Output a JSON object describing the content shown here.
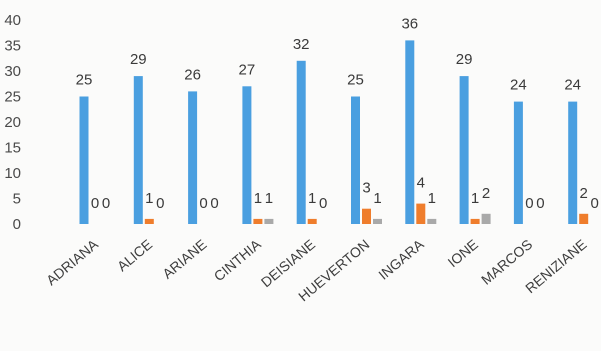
{
  "chart_data": {
    "type": "bar",
    "title": "",
    "xlabel": "",
    "ylabel": "",
    "ylim": [
      0,
      40
    ],
    "y_ticks": [
      0,
      5,
      10,
      15,
      20,
      25,
      30,
      35,
      40
    ],
    "grid": false,
    "legend": "none",
    "categories": [
      "ADRIANA",
      "ALICE",
      "ARIANE",
      "CINTHIA",
      "DEISIANE",
      "HUEVERTON",
      "INGARA",
      "IONE",
      "MARCOS",
      "RENIZIANE"
    ],
    "series": [
      {
        "color": "#4a9fe0",
        "values": [
          25,
          29,
          26,
          27,
          32,
          25,
          36,
          29,
          24,
          24
        ]
      },
      {
        "color": "#ef7d2c",
        "values": [
          0,
          1,
          0,
          1,
          1,
          3,
          4,
          1,
          0,
          2
        ]
      },
      {
        "color": "#a9a9a9",
        "values": [
          0,
          0,
          0,
          1,
          0,
          1,
          1,
          2,
          0,
          0
        ]
      }
    ]
  }
}
